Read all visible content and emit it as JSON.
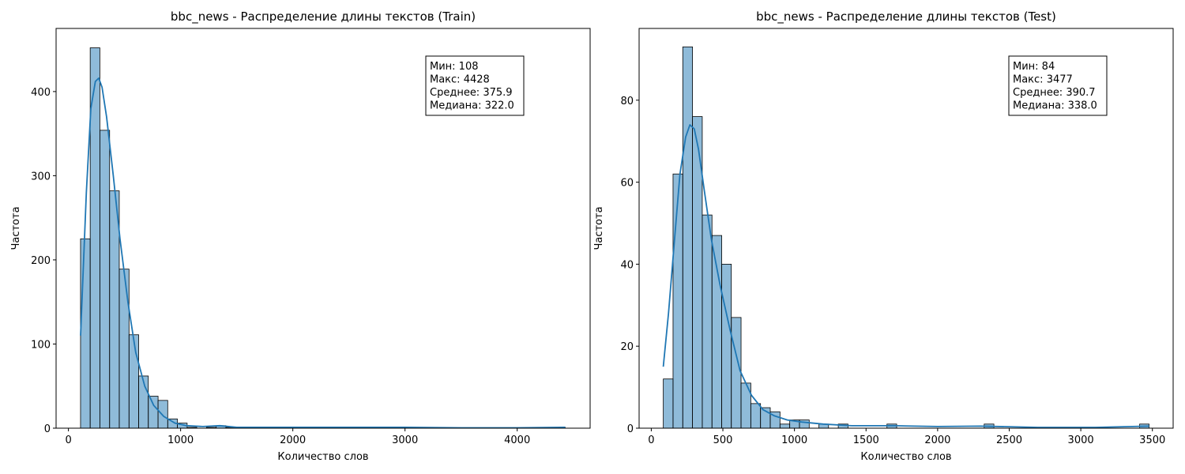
{
  "chart_data": [
    {
      "type": "bar",
      "subtype": "histogram-with-kde",
      "title": "bbc_news - Распределение длины текстов (Train)",
      "xlabel": "Количество слов",
      "ylabel": "Частота",
      "xlim": [
        -110,
        4650
      ],
      "ylim": [
        0,
        475
      ],
      "xticks": [
        0,
        1000,
        2000,
        3000,
        4000
      ],
      "yticks": [
        0,
        100,
        200,
        300,
        400
      ],
      "grid": false,
      "bar_color": "#1f77b4",
      "line_color": "#1f77b4",
      "bin_edges": [
        108,
        194,
        280,
        367,
        453,
        540,
        626,
        712,
        799,
        885,
        971,
        1058,
        1144,
        1230,
        1317,
        1403,
        1489,
        1576,
        1662,
        1748,
        1835,
        1921,
        2007,
        2094,
        2180,
        2267,
        2353,
        2439,
        2526,
        2612,
        2698,
        2785,
        2871,
        2957,
        3044,
        3130,
        3216,
        3303,
        3389,
        3475,
        3562,
        3648,
        3734,
        3821,
        3907,
        3994,
        4080,
        4166,
        4253,
        4339,
        4428
      ],
      "counts": [
        225,
        452,
        354,
        282,
        189,
        111,
        62,
        38,
        33,
        11,
        6,
        1,
        0,
        1,
        3,
        1,
        1,
        0,
        0,
        0,
        0,
        0,
        0,
        0,
        0,
        0,
        0,
        1,
        0,
        0,
        0,
        0,
        0,
        0,
        0,
        1,
        0,
        0,
        0,
        0,
        0,
        0,
        0,
        0,
        0,
        0,
        0,
        0,
        0,
        1
      ],
      "kde": {
        "x": [
          108,
          160,
          200,
          240,
          270,
          300,
          340,
          400,
          460,
          530,
          600,
          680,
          760,
          850,
          950,
          1050,
          1200,
          1350,
          1500,
          2000,
          2400,
          3000,
          3500,
          4000,
          4428
        ],
        "y": [
          110,
          280,
          380,
          412,
          416,
          405,
          370,
          300,
          225,
          150,
          90,
          50,
          27,
          14,
          6,
          3,
          2,
          3,
          1,
          1,
          1,
          1,
          0.5,
          0.5,
          1
        ]
      },
      "stats": [
        "Мин: 108",
        "Макс: 4428",
        "Среднее: 375.9",
        "Медиана: 322.0"
      ]
    },
    {
      "type": "bar",
      "subtype": "histogram-with-kde",
      "title": "bbc_news - Распределение длины текстов (Test)",
      "xlabel": "Количество слов",
      "ylabel": "Частота",
      "xlim": [
        -85,
        3645
      ],
      "ylim": [
        0,
        97.5
      ],
      "xticks": [
        0,
        500,
        1000,
        1500,
        2000,
        2500,
        3000,
        3500
      ],
      "yticks": [
        0,
        20,
        40,
        60,
        80
      ],
      "grid": false,
      "bar_color": "#1f77b4",
      "line_color": "#1f77b4",
      "bin_edges": [
        84,
        152,
        220,
        288,
        356,
        424,
        492,
        559,
        627,
        695,
        763,
        831,
        899,
        967,
        1035,
        1103,
        1171,
        1238,
        1306,
        1374,
        1442,
        1510,
        1578,
        1646,
        1714,
        1782,
        1850,
        1917,
        1985,
        2053,
        2121,
        2189,
        2257,
        2325,
        2393,
        2461,
        2529,
        2596,
        2664,
        2732,
        2800,
        2868,
        2936,
        3004,
        3072,
        3140,
        3208,
        3275,
        3343,
        3411,
        3477
      ],
      "counts": [
        12,
        62,
        93,
        76,
        52,
        47,
        40,
        27,
        11,
        6,
        5,
        4,
        1,
        2,
        2,
        0,
        1,
        0,
        1,
        0,
        0,
        0,
        0,
        1,
        0,
        0,
        0,
        0,
        0,
        0,
        0,
        0,
        0,
        1,
        0,
        0,
        0,
        0,
        0,
        0,
        0,
        0,
        0,
        0,
        0,
        0,
        0,
        0,
        0,
        1
      ],
      "kde": {
        "x": [
          84,
          120,
          160,
          200,
          240,
          270,
          300,
          330,
          370,
          420,
          480,
          550,
          620,
          700,
          780,
          860,
          950,
          1050,
          1200,
          1400,
          1700,
          2000,
          2300,
          2700,
          3100,
          3477
        ],
        "y": [
          15,
          28,
          45,
          62,
          71,
          74,
          73,
          68,
          58,
          46,
          35,
          24,
          14,
          8,
          4.5,
          3,
          2,
          1.5,
          1,
          0.6,
          0.6,
          0.4,
          0.5,
          0.2,
          0.2,
          0.5
        ]
      },
      "stats": [
        "Мин: 84",
        "Макс: 3477",
        "Среднее: 390.7",
        "Медиана: 338.0"
      ]
    }
  ]
}
